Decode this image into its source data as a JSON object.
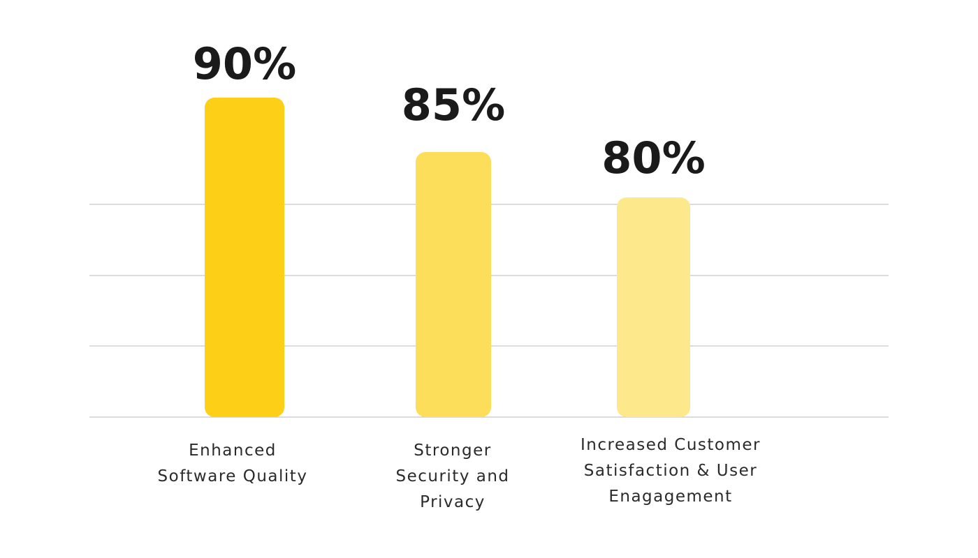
{
  "chart_data": {
    "type": "bar",
    "categories": [
      [
        "Enhanced",
        "Software Quality"
      ],
      [
        "Stronger",
        "Security and",
        "Privacy"
      ],
      [
        "Increased Customer",
        "Satisfaction & User",
        "Enagagement"
      ]
    ],
    "values": [
      90,
      85,
      80
    ],
    "value_labels": [
      "90%",
      "85%",
      "80%"
    ],
    "colors": [
      "#fdd017",
      "#fdde5b",
      "#fee88c"
    ],
    "title": "",
    "xlabel": "",
    "ylabel": "",
    "grid": true
  }
}
